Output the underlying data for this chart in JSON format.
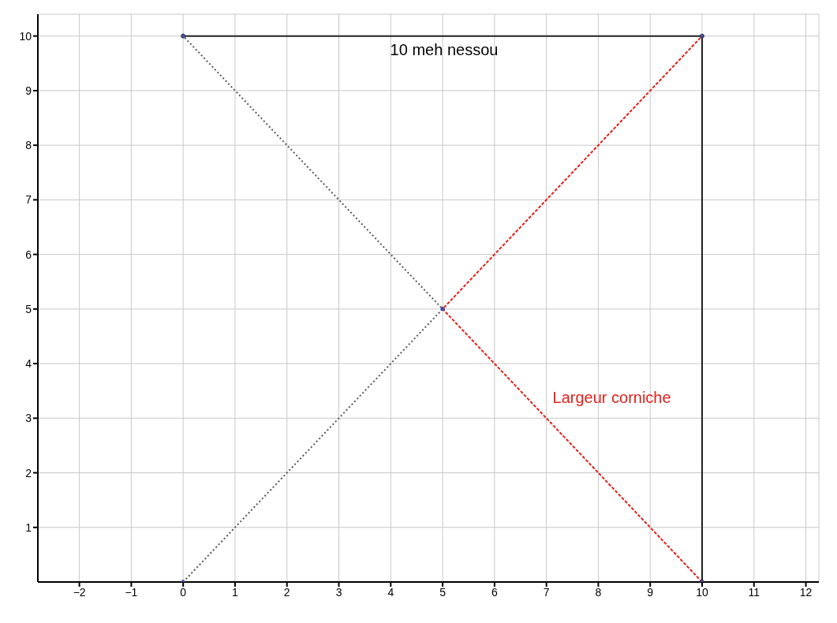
{
  "chart_data": {
    "type": "line",
    "xlim": [
      -2.8,
      12.25
    ],
    "ylim": [
      0,
      10.4
    ],
    "xticks": [
      -2,
      -1,
      0,
      1,
      2,
      3,
      4,
      5,
      6,
      7,
      8,
      9,
      10,
      11,
      12
    ],
    "yticks": [
      1,
      2,
      3,
      4,
      5,
      6,
      7,
      8,
      9,
      10
    ],
    "grid": true,
    "legend": false,
    "series": [
      {
        "color": "#222222",
        "x": [
          0,
          10,
          10
        ],
        "values": [
          10,
          10,
          0
        ],
        "marker": "circle",
        "line_style": "solid"
      },
      {
        "color": "#555555",
        "x": [
          0,
          5,
          0
        ],
        "values": [
          0,
          5,
          10
        ],
        "marker": "circle",
        "line_style": "dotted"
      },
      {
        "name": "Largeur corniche",
        "color": "#e0201b",
        "x": [
          10,
          5,
          10
        ],
        "values": [
          0,
          5,
          10
        ],
        "marker": "none",
        "line_style": "dashed"
      }
    ],
    "annotations": [
      "10 meh nessou"
    ]
  }
}
